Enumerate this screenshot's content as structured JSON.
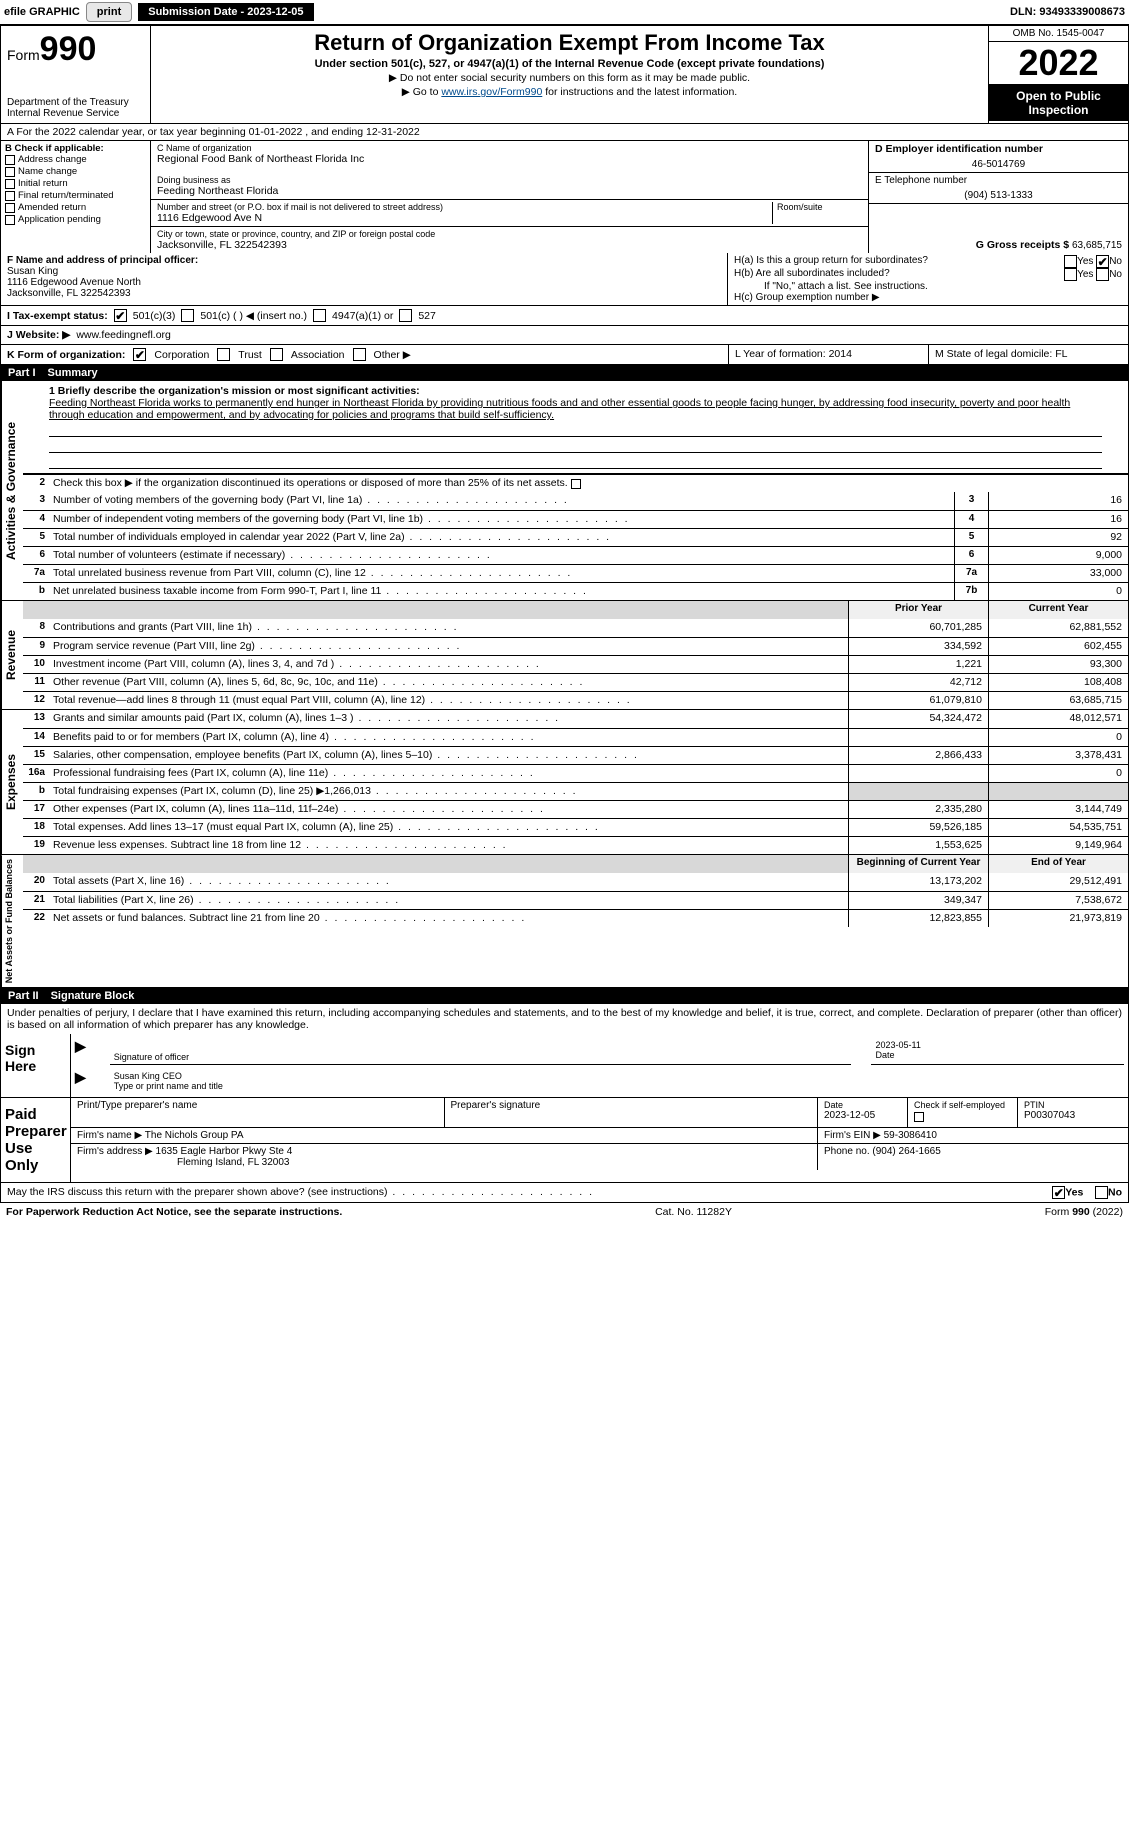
{
  "topbar": {
    "efile": "efile GRAPHIC",
    "print": "print",
    "submission": "Submission Date - 2023-12-05",
    "dln": "DLN: 93493339008673"
  },
  "header": {
    "form_prefix": "Form",
    "form_no": "990",
    "dept": "Department of the Treasury",
    "irs": "Internal Revenue Service",
    "title": "Return of Organization Exempt From Income Tax",
    "sub1": "Under section 501(c), 527, or 4947(a)(1) of the Internal Revenue Code (except private foundations)",
    "sub2": "▶ Do not enter social security numbers on this form as it may be made public.",
    "sub3_pre": "▶ Go to ",
    "sub3_link": "www.irs.gov/Form990",
    "sub3_post": " for instructions and the latest information.",
    "omb": "OMB No. 1545-0047",
    "year": "2022",
    "open": "Open to Public Inspection"
  },
  "row_a": "A For the 2022 calendar year, or tax year beginning 01-01-2022     , and ending 12-31-2022",
  "col_b": {
    "head": "B Check if applicable:",
    "opts": [
      "Address change",
      "Name change",
      "Initial return",
      "Final return/terminated",
      "Amended return",
      "Application pending"
    ]
  },
  "col_c": {
    "c_label": "C Name of organization",
    "c_val": "Regional Food Bank of Northeast Florida Inc",
    "dba_label": "Doing business as",
    "dba_val": "Feeding Northeast Florida",
    "street_label": "Number and street (or P.O. box if mail is not delivered to street address)",
    "room_label": "Room/suite",
    "street_val": "1116 Edgewood Ave N",
    "city_label": "City or town, state or province, country, and ZIP or foreign postal code",
    "city_val": "Jacksonville, FL  322542393"
  },
  "col_right": {
    "d_label": "D Employer identification number",
    "d_val": "46-5014769",
    "e_label": "E Telephone number",
    "e_val": "(904) 513-1333",
    "g_label": "G Gross receipts $",
    "g_val": "63,685,715"
  },
  "f_block": {
    "f_label": "F Name and address of principal officer:",
    "name": "Susan King",
    "addr1": "1116 Edgewood Avenue North",
    "addr2": "Jacksonville, FL  322542393"
  },
  "h_block": {
    "ha": "H(a)  Is this a group return for subordinates?",
    "hb": "H(b)  Are all subordinates included?",
    "hb_note": "If \"No,\" attach a list. See instructions.",
    "hc": "H(c)  Group exemption number ▶",
    "yes": "Yes",
    "no": "No"
  },
  "i_row": {
    "label": "I   Tax-exempt status:",
    "o501c3": "501(c)(3)",
    "o501c": "501(c) (   ) ◀ (insert no.)",
    "o4947": "4947(a)(1) or",
    "o527": "527"
  },
  "j_row": {
    "label": "J   Website: ▶",
    "val": "www.feedingnefl.org"
  },
  "k_row": {
    "label": "K Form of organization:",
    "corp": "Corporation",
    "trust": "Trust",
    "assoc": "Association",
    "other": "Other ▶"
  },
  "lm": {
    "l": "L Year of formation: 2014",
    "m": "M State of legal domicile: FL"
  },
  "part1": {
    "tag": "Part I",
    "title": "Summary"
  },
  "summary": {
    "brief_label": "1  Briefly describe the organization's mission or most significant activities:",
    "brief": "Feeding Northeast Florida works to permanently end hunger in Northeast Florida by providing nutritious foods and and other essential goods to people facing hunger, by addressing food insecurity, poverty and poor health through education and empowerment, and by advocating for policies and programs that build self-sufficiency.",
    "l2": "Check this box ▶     if the organization discontinued its operations or disposed of more than 25% of its net assets.",
    "rows_ag": [
      {
        "n": "3",
        "t": "Number of voting members of the governing body (Part VI, line 1a)",
        "b": "3",
        "v": "16"
      },
      {
        "n": "4",
        "t": "Number of independent voting members of the governing body (Part VI, line 1b)",
        "b": "4",
        "v": "16"
      },
      {
        "n": "5",
        "t": "Total number of individuals employed in calendar year 2022 (Part V, line 2a)",
        "b": "5",
        "v": "92"
      },
      {
        "n": "6",
        "t": "Total number of volunteers (estimate if necessary)",
        "b": "6",
        "v": "9,000"
      },
      {
        "n": "7a",
        "t": "Total unrelated business revenue from Part VIII, column (C), line 12",
        "b": "7a",
        "v": "33,000"
      },
      {
        "n": "b",
        "t": "Net unrelated business taxable income from Form 990-T, Part I, line 11",
        "b": "7b",
        "v": "0"
      }
    ],
    "prior_hdr": "Prior Year",
    "curr_hdr": "Current Year",
    "rows_rev": [
      {
        "n": "8",
        "t": "Contributions and grants (Part VIII, line 1h)",
        "p": "60,701,285",
        "c": "62,881,552"
      },
      {
        "n": "9",
        "t": "Program service revenue (Part VIII, line 2g)",
        "p": "334,592",
        "c": "602,455"
      },
      {
        "n": "10",
        "t": "Investment income (Part VIII, column (A), lines 3, 4, and 7d )",
        "p": "1,221",
        "c": "93,300"
      },
      {
        "n": "11",
        "t": "Other revenue (Part VIII, column (A), lines 5, 6d, 8c, 9c, 10c, and 11e)",
        "p": "42,712",
        "c": "108,408"
      },
      {
        "n": "12",
        "t": "Total revenue—add lines 8 through 11 (must equal Part VIII, column (A), line 12)",
        "p": "61,079,810",
        "c": "63,685,715"
      }
    ],
    "rows_exp": [
      {
        "n": "13",
        "t": "Grants and similar amounts paid (Part IX, column (A), lines 1–3 )",
        "p": "54,324,472",
        "c": "48,012,571"
      },
      {
        "n": "14",
        "t": "Benefits paid to or for members (Part IX, column (A), line 4)",
        "p": "",
        "c": "0"
      },
      {
        "n": "15",
        "t": "Salaries, other compensation, employee benefits (Part IX, column (A), lines 5–10)",
        "p": "2,866,433",
        "c": "3,378,431"
      },
      {
        "n": "16a",
        "t": "Professional fundraising fees (Part IX, column (A), line 11e)",
        "p": "",
        "c": "0"
      },
      {
        "n": "b",
        "t": "Total fundraising expenses (Part IX, column (D), line 25) ▶1,266,013",
        "p": "SHADE",
        "c": "SHADE"
      },
      {
        "n": "17",
        "t": "Other expenses (Part IX, column (A), lines 11a–11d, 11f–24e)",
        "p": "2,335,280",
        "c": "3,144,749"
      },
      {
        "n": "18",
        "t": "Total expenses. Add lines 13–17 (must equal Part IX, column (A), line 25)",
        "p": "59,526,185",
        "c": "54,535,751"
      },
      {
        "n": "19",
        "t": "Revenue less expenses. Subtract line 18 from line 12",
        "p": "1,553,625",
        "c": "9,149,964"
      }
    ],
    "bcy": "Beginning of Current Year",
    "eoy": "End of Year",
    "rows_na": [
      {
        "n": "20",
        "t": "Total assets (Part X, line 16)",
        "p": "13,173,202",
        "c": "29,512,491"
      },
      {
        "n": "21",
        "t": "Total liabilities (Part X, line 26)",
        "p": "349,347",
        "c": "7,538,672"
      },
      {
        "n": "22",
        "t": "Net assets or fund balances. Subtract line 21 from line 20",
        "p": "12,823,855",
        "c": "21,973,819"
      }
    ]
  },
  "sidelabels": {
    "ag": "Activities & Governance",
    "rev": "Revenue",
    "exp": "Expenses",
    "na": "Net Assets or Fund Balances"
  },
  "part2": {
    "tag": "Part II",
    "title": "Signature Block"
  },
  "penalties": "Under penalties of perjury, I declare that I have examined this return, including accompanying schedules and statements, and to the best of my knowledge and belief, it is true, correct, and complete. Declaration of preparer (other than officer) is based on all information of which preparer has any knowledge.",
  "sign": {
    "side": "Sign Here",
    "sig_of": "Signature of officer",
    "date": "Date",
    "date_val": "2023-05-11",
    "name": "Susan King  CEO",
    "name_lbl": "Type or print name and title"
  },
  "paid": {
    "side1": "Paid",
    "side2": "Preparer",
    "side3": "Use Only",
    "h1": "Print/Type preparer's name",
    "h2": "Preparer's signature",
    "h3": "Date",
    "h4": "Check       if self-employed",
    "h5": "PTIN",
    "date": "2023-12-05",
    "ptin": "P00307043",
    "firm_lbl": "Firm's name    ▶",
    "firm": "The Nichols Group PA",
    "ein_lbl": "Firm's EIN ▶",
    "ein": "59-3086410",
    "addr_lbl": "Firm's address ▶",
    "addr1": "1635 Eagle Harbor Pkwy Ste 4",
    "addr2": "Fleming Island, FL  32003",
    "phone_lbl": "Phone no.",
    "phone": "(904) 264-1665"
  },
  "discuss": "May the IRS discuss this return with the preparer shown above? (see instructions)",
  "footer": {
    "pra": "For Paperwork Reduction Act Notice, see the separate instructions.",
    "cat": "Cat. No. 11282Y",
    "form": "Form 990 (2022)"
  }
}
